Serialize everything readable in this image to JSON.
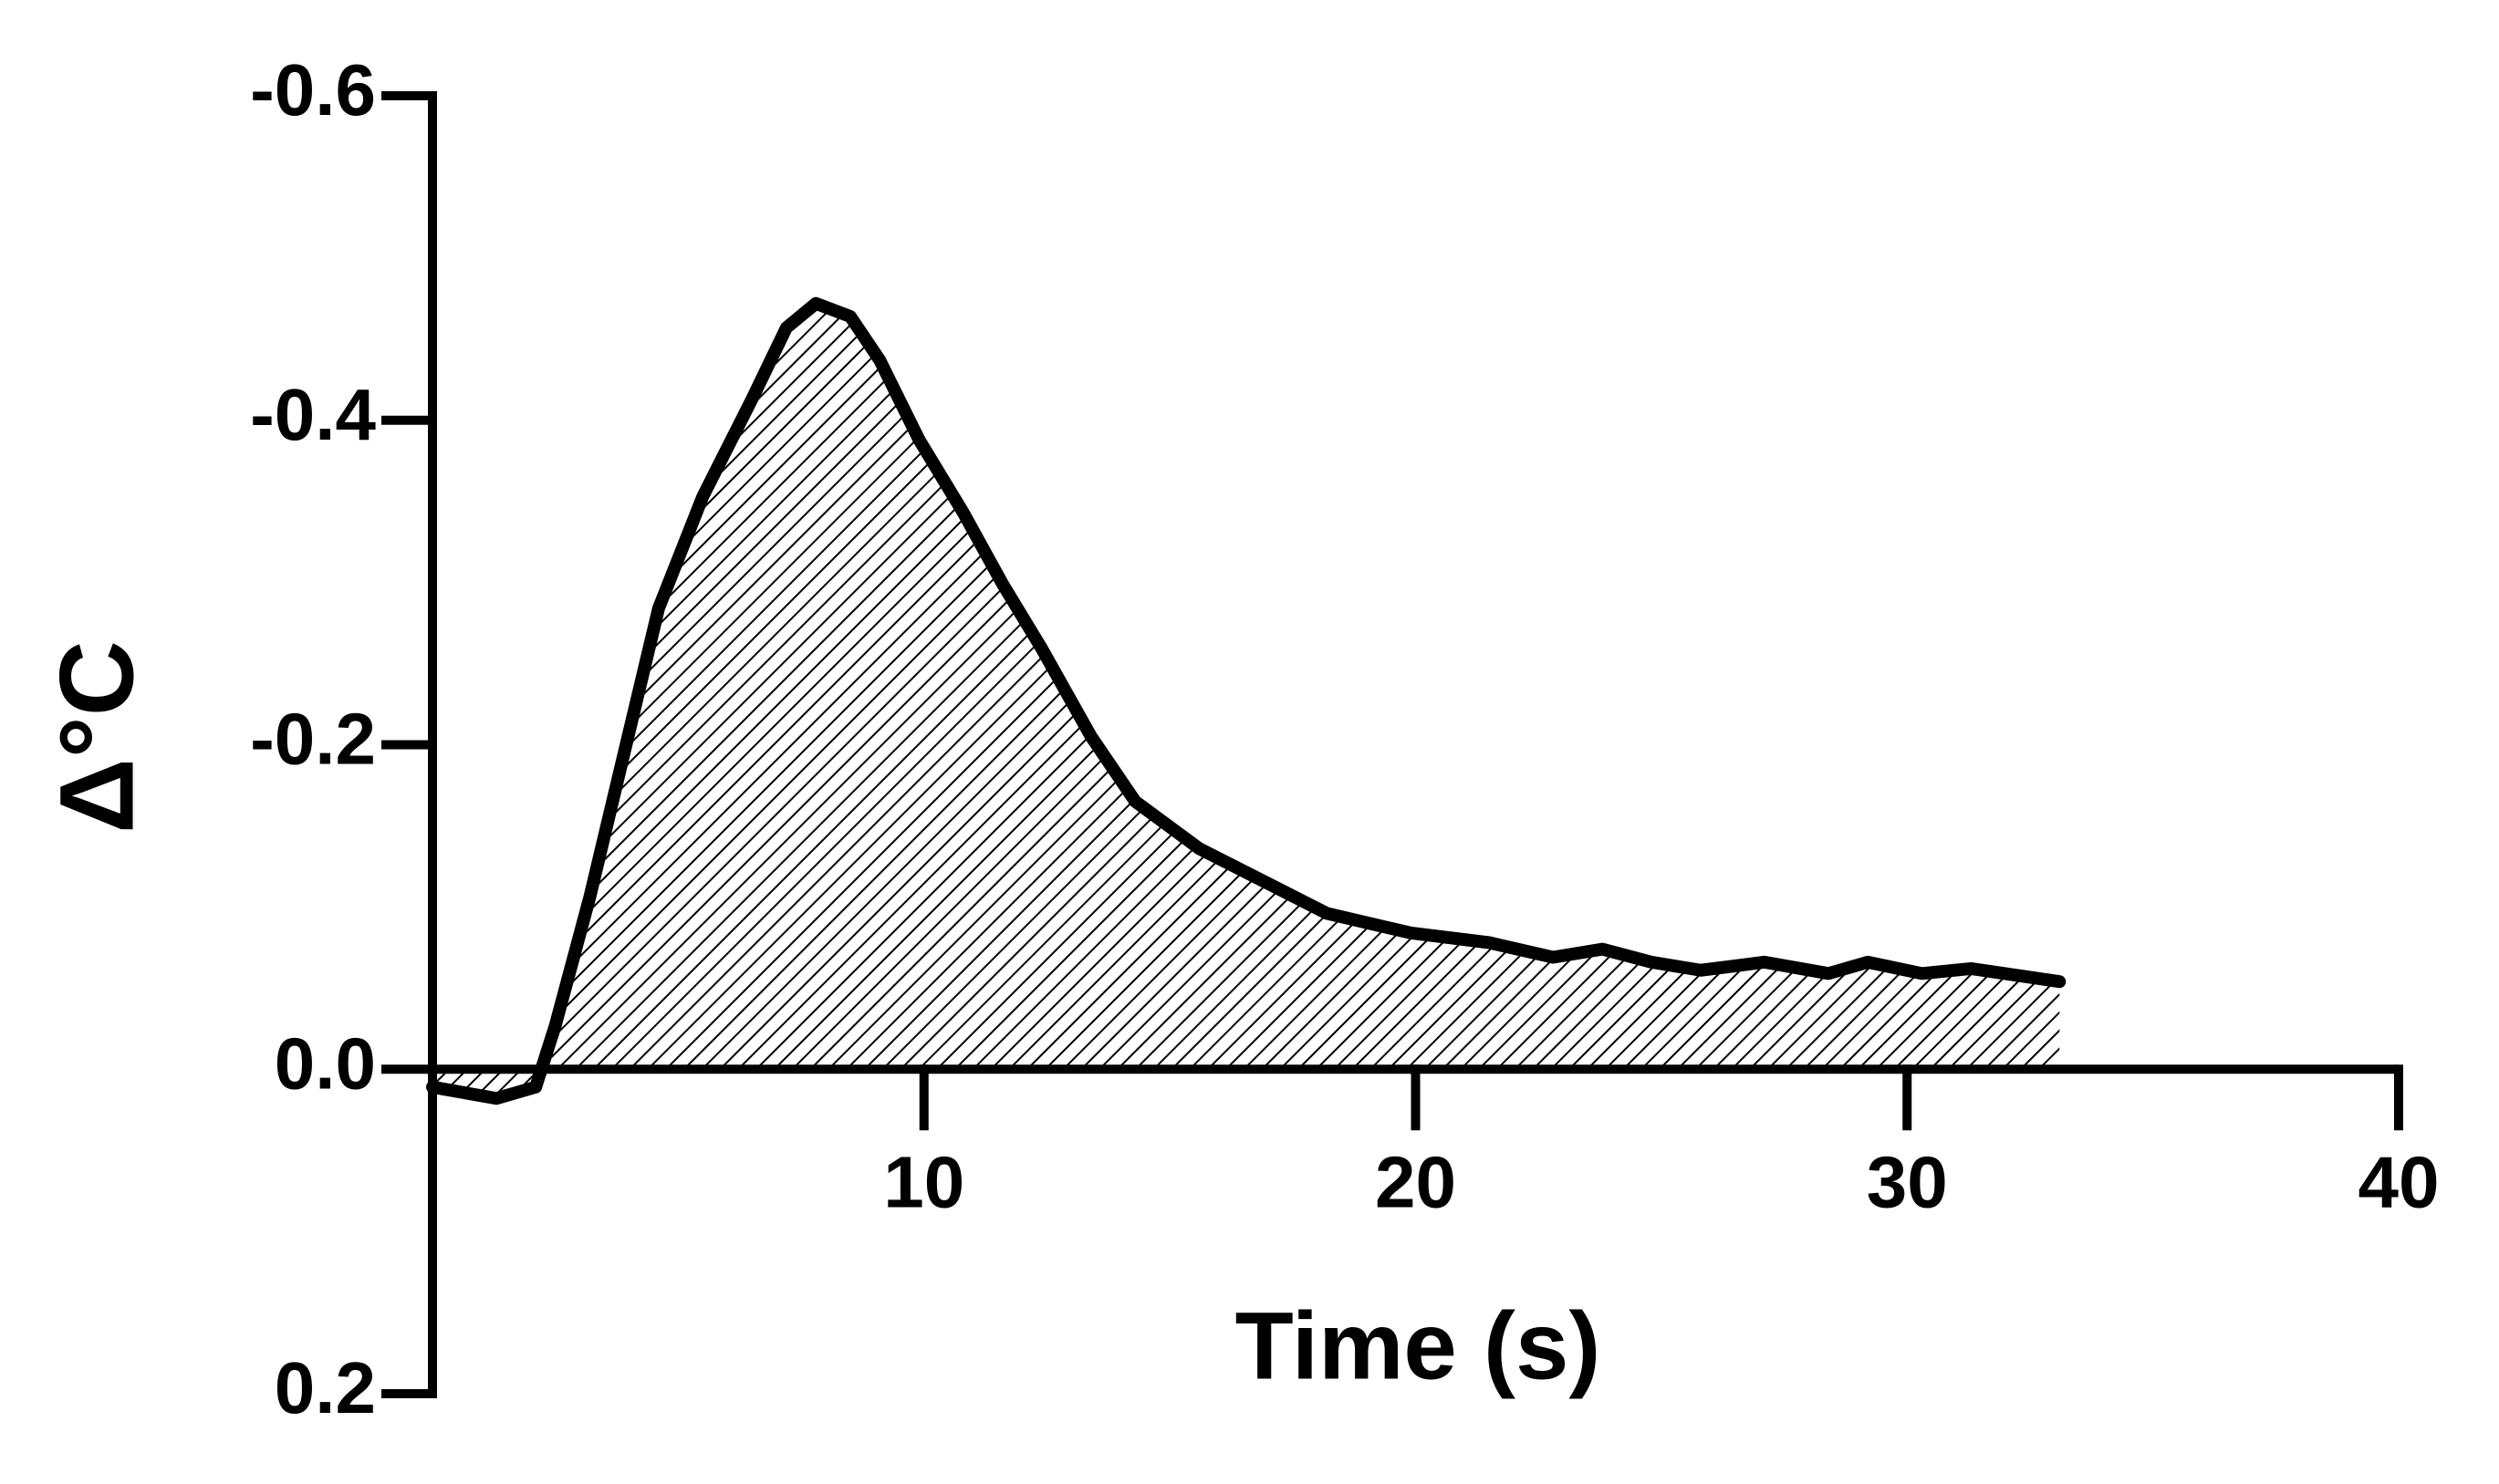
{
  "chart_data": {
    "type": "area",
    "x_label": "Time (s)",
    "y_label": "Δ°C",
    "x": [
      0,
      1.3,
      2.1,
      2.5,
      3.2,
      3.9,
      4.6,
      5.5,
      6.5,
      7.2,
      7.8,
      8.5,
      9.1,
      9.9,
      10.8,
      11.6,
      12.4,
      13.4,
      14.3,
      15.6,
      16.9,
      18.2,
      19.9,
      21.5,
      22.8,
      23.8,
      24.8,
      25.8,
      27.1,
      28.4,
      29.2,
      30.3,
      31.3,
      33.1
    ],
    "values": [
      0.011,
      0.018,
      0.011,
      -0.027,
      -0.106,
      -0.195,
      -0.284,
      -0.353,
      -0.413,
      -0.457,
      -0.472,
      -0.464,
      -0.437,
      -0.388,
      -0.343,
      -0.299,
      -0.259,
      -0.205,
      -0.165,
      -0.136,
      -0.116,
      -0.096,
      -0.084,
      -0.078,
      -0.069,
      -0.074,
      -0.066,
      -0.061,
      -0.066,
      -0.059,
      -0.066,
      -0.059,
      -0.062,
      -0.054
    ],
    "color": "#000000",
    "fill": "hatch",
    "xlim": [
      0,
      40
    ],
    "xticks": [
      10,
      20,
      30,
      40
    ],
    "ylim": [
      -0.6,
      0.2
    ],
    "y_inverted": true,
    "yticks": [
      -0.6,
      -0.4,
      -0.2,
      {
        "value": 0,
        "label": "0.0"
      },
      0.2
    ]
  }
}
